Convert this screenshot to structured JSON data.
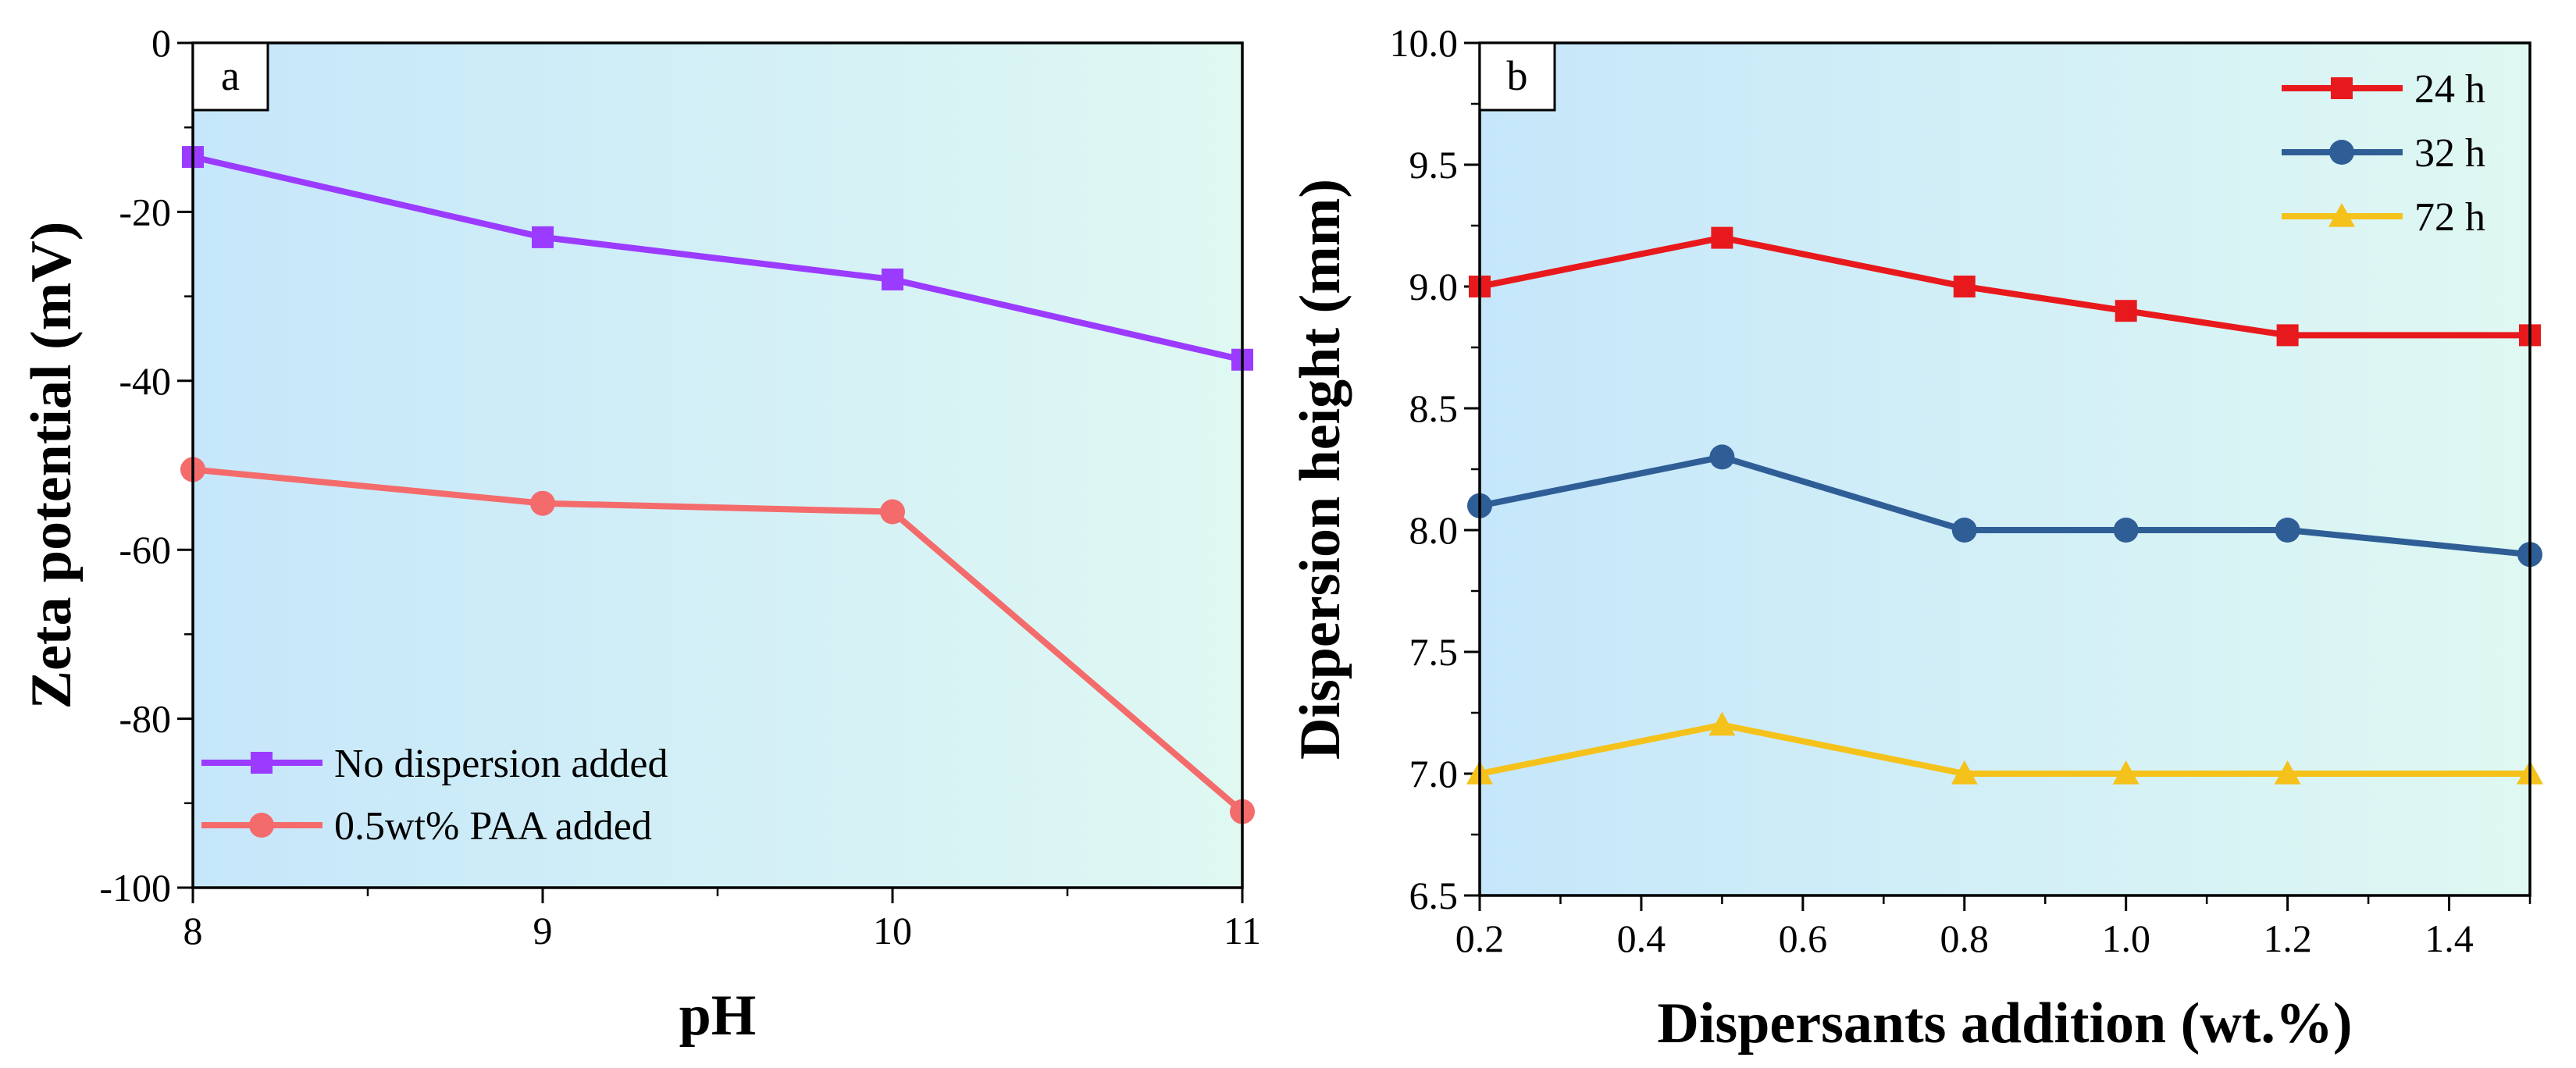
{
  "chart_data": [
    {
      "panel_label": "a",
      "type": "line",
      "xlabel": "pH",
      "ylabel": "Zeta potential (mV)",
      "xlim": [
        8,
        11
      ],
      "ylim": [
        -100,
        0
      ],
      "xticks": [
        8,
        9,
        10,
        11
      ],
      "xtick_labels": [
        "8",
        "9",
        "10",
        "11"
      ],
      "yticks": [
        0,
        -20,
        -40,
        -60,
        -80,
        -100
      ],
      "ytick_labels": [
        "0",
        "-20",
        "-40",
        "-60",
        "-80",
        "-100"
      ],
      "grid": false,
      "legend_position": "bottom-left",
      "series": [
        {
          "name": "No dispersion added",
          "color": "#9b3bff",
          "marker": "square",
          "x": [
            8,
            9,
            10,
            11
          ],
          "y": [
            -13.5,
            -23,
            -28,
            -37.5
          ]
        },
        {
          "name": "0.5wt% PAA added",
          "color": "#f46b6b",
          "marker": "circle",
          "x": [
            8,
            9,
            10,
            11
          ],
          "y": [
            -50.5,
            -54.5,
            -55.5,
            -91
          ]
        }
      ]
    },
    {
      "panel_label": "b",
      "type": "line",
      "xlabel": "Dispersants addition (wt.%)",
      "ylabel": "Dispersion height (mm)",
      "xlim": [
        0.2,
        1.5
      ],
      "ylim": [
        6.5,
        10.0
      ],
      "xticks": [
        0.2,
        0.4,
        0.6,
        0.8,
        1.0,
        1.2,
        1.4
      ],
      "xtick_labels": [
        "0.2",
        "0.4",
        "0.6",
        "0.8",
        "1.0",
        "1.2",
        "1.4"
      ],
      "yticks": [
        6.5,
        7.0,
        7.5,
        8.0,
        8.5,
        9.0,
        9.5,
        10.0
      ],
      "ytick_labels": [
        "6.5",
        "7.0",
        "7.5",
        "8.0",
        "8.5",
        "9.0",
        "9.5",
        "10.0"
      ],
      "grid": false,
      "legend_position": "top-right",
      "series": [
        {
          "name": "24 h",
          "color": "#e8191c",
          "marker": "square",
          "x": [
            0.2,
            0.5,
            0.8,
            1.0,
            1.2,
            1.5
          ],
          "y": [
            9.0,
            9.2,
            9.0,
            8.9,
            8.8,
            8.8
          ]
        },
        {
          "name": "32 h",
          "color": "#2f5e97",
          "marker": "circle",
          "x": [
            0.2,
            0.5,
            0.8,
            1.0,
            1.2,
            1.5
          ],
          "y": [
            8.1,
            8.3,
            8.0,
            8.0,
            8.0,
            7.9
          ]
        },
        {
          "name": "72 h",
          "color": "#f5c21b",
          "marker": "triangle",
          "x": [
            0.2,
            0.5,
            0.8,
            1.0,
            1.2,
            1.5
          ],
          "y": [
            7.0,
            7.2,
            7.0,
            7.0,
            7.0,
            7.0
          ]
        }
      ]
    }
  ],
  "style": {
    "background_gradient": [
      "#c6e7fb",
      "#dff8f2"
    ],
    "axis_color": "#000000"
  }
}
